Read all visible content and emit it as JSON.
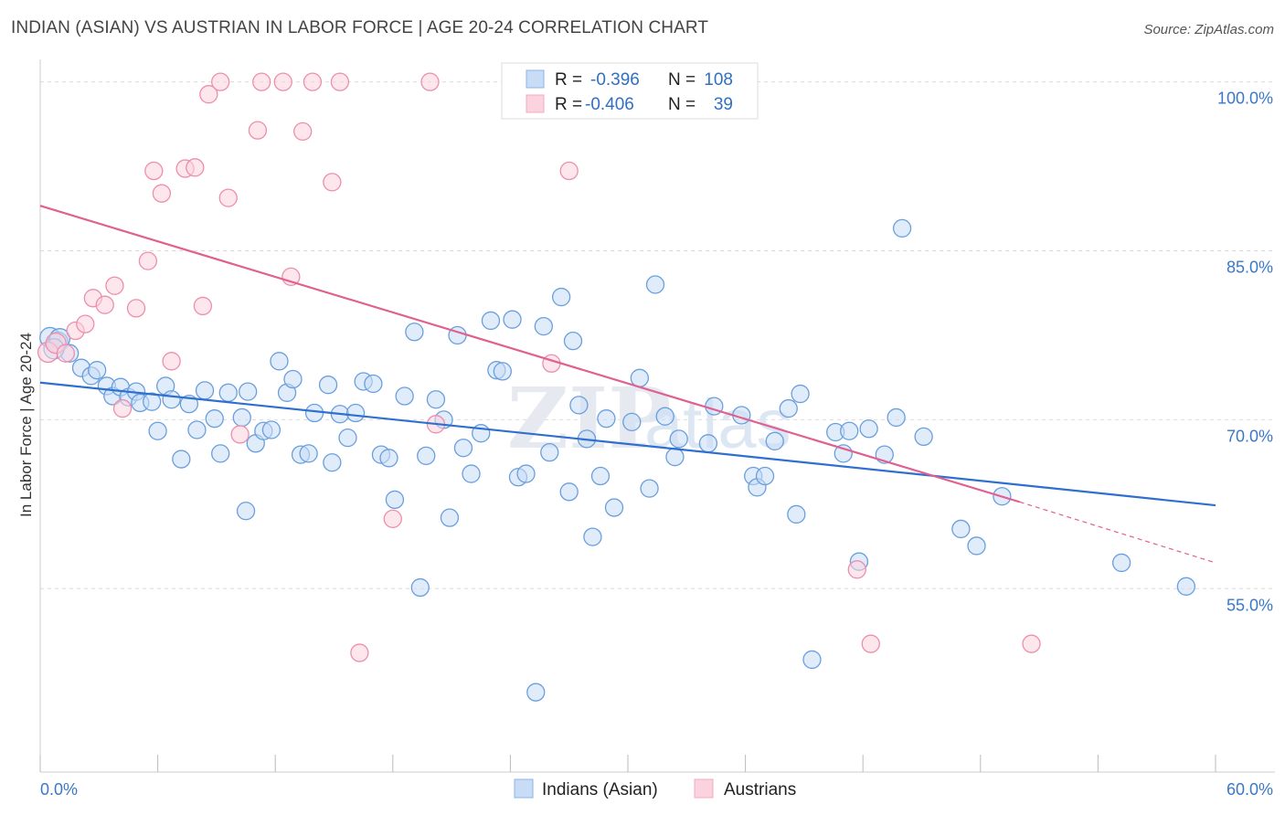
{
  "header": {
    "title": "INDIAN (ASIAN) VS AUSTRIAN IN LABOR FORCE | AGE 20-24 CORRELATION CHART",
    "source": "Source: ZipAtlas.com"
  },
  "chart_data": {
    "type": "scatter",
    "ylabel": "In Labor Force | Age 20-24",
    "xlim": [
      0,
      60
    ],
    "ylim": [
      40.5,
      102
    ],
    "x_tick_labels": [
      {
        "value": 0,
        "label": "0.0%"
      },
      {
        "value": 60,
        "label": "60.0%"
      }
    ],
    "y_tick_labels": [
      {
        "value": 100,
        "label": "100.0%"
      },
      {
        "value": 85,
        "label": "85.0%"
      },
      {
        "value": 70,
        "label": "70.0%"
      },
      {
        "value": 55,
        "label": "55.0%"
      }
    ],
    "grid": true,
    "watermark": "ZIPatlas",
    "legend_position": "top-center",
    "stats": [
      {
        "r_label": "R =",
        "r": "-0.396",
        "n_label": "N =",
        "n": "108"
      },
      {
        "r_label": "R =",
        "r": "-0.406",
        "n_label": "N =",
        "n": "39"
      }
    ],
    "series": [
      {
        "name": "Indians (Asian)",
        "color": "#8ab4e8",
        "line_color": "#2f6fd0",
        "trend": {
          "x": [
            0,
            60
          ],
          "y": [
            73.3,
            62.4
          ]
        },
        "points": [
          [
            0.5,
            77.3
          ],
          [
            0.9,
            76.9
          ],
          [
            1.0,
            77.2
          ],
          [
            1.5,
            75.9
          ],
          [
            2.1,
            74.6
          ],
          [
            2.6,
            73.9
          ],
          [
            2.9,
            74.4
          ],
          [
            3.4,
            73.0
          ],
          [
            3.7,
            72.1
          ],
          [
            4.1,
            72.9
          ],
          [
            4.5,
            72.0
          ],
          [
            4.9,
            72.5
          ],
          [
            5.1,
            71.5
          ],
          [
            5.7,
            71.6
          ],
          [
            6.0,
            69.0
          ],
          [
            6.4,
            73.0
          ],
          [
            6.7,
            71.8
          ],
          [
            7.2,
            66.5
          ],
          [
            7.6,
            71.4
          ],
          [
            8.0,
            69.1
          ],
          [
            8.4,
            72.6
          ],
          [
            8.9,
            70.1
          ],
          [
            9.2,
            67.0
          ],
          [
            9.6,
            72.4
          ],
          [
            10.3,
            70.2
          ],
          [
            10.6,
            72.5
          ],
          [
            10.5,
            61.9
          ],
          [
            11.0,
            67.9
          ],
          [
            11.4,
            69.0
          ],
          [
            11.8,
            69.1
          ],
          [
            12.2,
            75.2
          ],
          [
            12.6,
            72.4
          ],
          [
            12.9,
            73.6
          ],
          [
            13.3,
            66.9
          ],
          [
            13.7,
            67.0
          ],
          [
            14.0,
            70.6
          ],
          [
            14.7,
            73.1
          ],
          [
            14.9,
            66.2
          ],
          [
            15.3,
            70.5
          ],
          [
            15.7,
            68.4
          ],
          [
            16.1,
            70.6
          ],
          [
            16.5,
            73.4
          ],
          [
            17.0,
            73.2
          ],
          [
            17.4,
            66.9
          ],
          [
            17.8,
            66.6
          ],
          [
            18.1,
            62.9
          ],
          [
            18.6,
            72.1
          ],
          [
            19.1,
            77.8
          ],
          [
            19.4,
            55.1
          ],
          [
            19.7,
            66.8
          ],
          [
            20.2,
            71.8
          ],
          [
            20.6,
            70.0
          ],
          [
            20.9,
            61.3
          ],
          [
            21.3,
            77.5
          ],
          [
            21.6,
            67.5
          ],
          [
            22.0,
            65.2
          ],
          [
            22.5,
            68.8
          ],
          [
            23.0,
            78.8
          ],
          [
            23.3,
            74.4
          ],
          [
            23.6,
            74.3
          ],
          [
            24.1,
            78.9
          ],
          [
            24.4,
            64.9
          ],
          [
            24.8,
            65.2
          ],
          [
            25.3,
            45.8
          ],
          [
            25.7,
            78.3
          ],
          [
            26.0,
            67.1
          ],
          [
            26.6,
            80.9
          ],
          [
            27.0,
            63.6
          ],
          [
            27.2,
            77.0
          ],
          [
            27.5,
            71.3
          ],
          [
            27.9,
            68.3
          ],
          [
            28.2,
            59.6
          ],
          [
            28.6,
            65.0
          ],
          [
            28.9,
            70.1
          ],
          [
            29.3,
            62.2
          ],
          [
            30.2,
            69.8
          ],
          [
            30.6,
            73.7
          ],
          [
            31.1,
            63.9
          ],
          [
            31.4,
            82.0
          ],
          [
            31.9,
            70.3
          ],
          [
            32.4,
            66.7
          ],
          [
            32.6,
            68.3
          ],
          [
            34.1,
            67.9
          ],
          [
            34.4,
            71.2
          ],
          [
            35.8,
            70.4
          ],
          [
            36.4,
            65.0
          ],
          [
            36.6,
            64.0
          ],
          [
            37.0,
            65.0
          ],
          [
            37.5,
            68.1
          ],
          [
            38.2,
            71.0
          ],
          [
            38.6,
            61.6
          ],
          [
            38.8,
            72.3
          ],
          [
            39.4,
            48.7
          ],
          [
            40.6,
            68.9
          ],
          [
            41.0,
            67.0
          ],
          [
            41.3,
            69.0
          ],
          [
            41.8,
            57.4
          ],
          [
            42.3,
            69.2
          ],
          [
            43.1,
            66.9
          ],
          [
            43.7,
            70.2
          ],
          [
            44.0,
            87.0
          ],
          [
            45.1,
            68.5
          ],
          [
            47.0,
            60.3
          ],
          [
            47.8,
            58.8
          ],
          [
            49.1,
            63.2
          ],
          [
            55.2,
            57.3
          ],
          [
            58.5,
            55.2
          ],
          [
            0.7,
            76.3
          ]
        ]
      },
      {
        "name": "Austrians",
        "color": "#f4a8c0",
        "line_color": "#e06090",
        "trend": {
          "x": [
            0,
            50
          ],
          "y": [
            89.0,
            62.7
          ]
        },
        "trend_dash": {
          "x": [
            50,
            60
          ],
          "y": [
            62.7,
            57.3
          ]
        },
        "points": [
          [
            0.4,
            76.0
          ],
          [
            0.8,
            76.8
          ],
          [
            1.3,
            75.9
          ],
          [
            1.8,
            77.9
          ],
          [
            2.3,
            78.5
          ],
          [
            2.7,
            80.8
          ],
          [
            3.3,
            80.2
          ],
          [
            3.8,
            81.9
          ],
          [
            4.2,
            71.0
          ],
          [
            4.9,
            79.9
          ],
          [
            5.5,
            84.1
          ],
          [
            5.8,
            92.1
          ],
          [
            6.2,
            90.1
          ],
          [
            6.7,
            75.2
          ],
          [
            7.4,
            92.3
          ],
          [
            7.9,
            92.4
          ],
          [
            8.3,
            80.1
          ],
          [
            8.6,
            98.9
          ],
          [
            9.2,
            100.0
          ],
          [
            9.6,
            89.7
          ],
          [
            10.2,
            68.7
          ],
          [
            11.1,
            95.7
          ],
          [
            11.3,
            100.0
          ],
          [
            12.4,
            100.0
          ],
          [
            12.8,
            82.7
          ],
          [
            13.4,
            95.6
          ],
          [
            13.9,
            100.0
          ],
          [
            14.9,
            91.1
          ],
          [
            15.3,
            100.0
          ],
          [
            16.3,
            49.3
          ],
          [
            18.0,
            61.2
          ],
          [
            19.9,
            100.0
          ],
          [
            20.2,
            69.6
          ],
          [
            25.0,
            100.0
          ],
          [
            26.1,
            75.0
          ],
          [
            27.0,
            92.1
          ],
          [
            41.7,
            56.7
          ],
          [
            42.4,
            50.1
          ],
          [
            50.6,
            50.1
          ]
        ]
      }
    ]
  }
}
